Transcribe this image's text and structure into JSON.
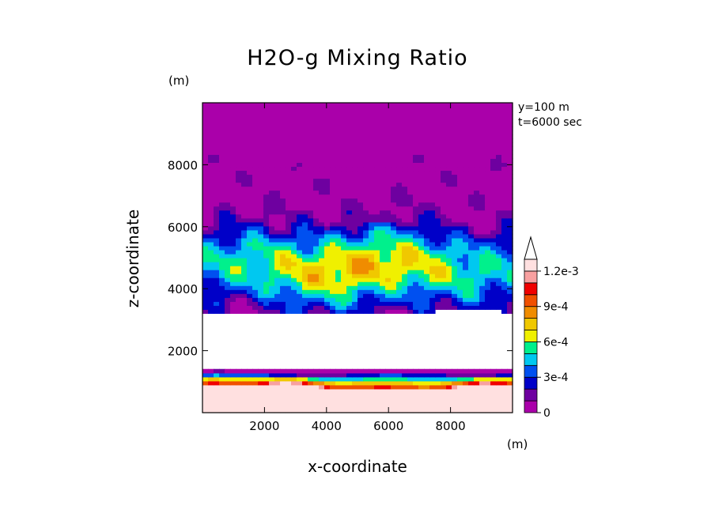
{
  "chart_data": {
    "type": "heatmap",
    "title": "H2O-g Mixing Ratio",
    "xlabel": "x-coordinate",
    "ylabel": "z-coordinate",
    "x_unit": "(m)",
    "z_unit": "(m)",
    "annotations": [
      "y=100 m",
      "t=6000 sec"
    ],
    "xlim": [
      0,
      10000
    ],
    "ylim": [
      0,
      10000
    ],
    "xticks": [
      2000,
      4000,
      6000,
      8000
    ],
    "xtick_labels": [
      "2000",
      "4000",
      "6000",
      "8000"
    ],
    "yticks": [
      2000,
      4000,
      6000,
      8000
    ],
    "ytick_labels": [
      "2000",
      "4000",
      "6000",
      "8000"
    ],
    "colorbar": {
      "levels": [
        0,
        0.0001,
        0.0002,
        0.0003,
        0.0004,
        0.0005,
        0.0006,
        0.0007,
        0.0008,
        0.0009,
        0.001,
        0.0011,
        0.0012
      ],
      "tick_labels": [
        "0",
        "3e-4",
        "6e-4",
        "9e-4",
        "1.2e-3"
      ],
      "tick_values": [
        0,
        0.0003,
        0.0006,
        0.0009,
        0.0012
      ],
      "colors": [
        "#aa00aa",
        "#6e00a0",
        "#0000c8",
        "#0050f0",
        "#00c8f0",
        "#00f08c",
        "#f0f000",
        "#f0c800",
        "#f08c00",
        "#f05000",
        "#f00000",
        "#f8a0a0",
        "#ffe0e0"
      ],
      "extend": "max"
    },
    "bands": [
      {
        "z": [
          0,
          800
        ],
        "value": "above 1.2e-3 (near surface)"
      },
      {
        "z": [
          800,
          1400
        ],
        "value": "0 to 1.2e-3 gradient"
      },
      {
        "z": [
          1400,
          3200
        ],
        "value": "masked / blank"
      },
      {
        "z": [
          3200,
          6500
        ],
        "value": "3e-4 to 7e-4 mid-layer maximum"
      },
      {
        "z": [
          6500,
          10000
        ],
        "value": "0 to 3e-4 decreasing aloft"
      }
    ]
  }
}
